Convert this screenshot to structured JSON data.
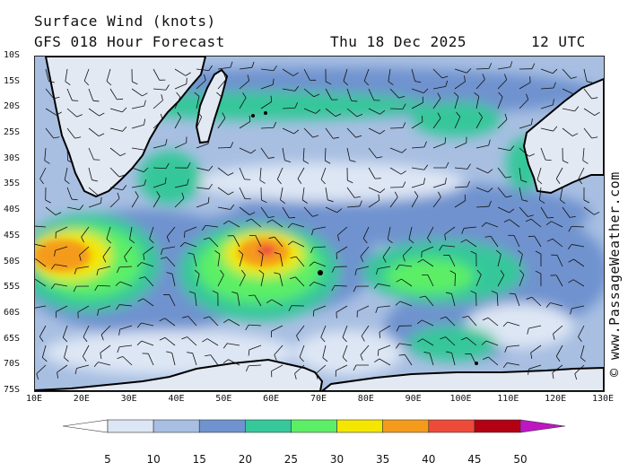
{
  "header": {
    "title": "Surface Wind (knots)",
    "subtitle": "GFS 018 Hour Forecast",
    "date": "Thu 18 Dec 2025",
    "time": "12 UTC"
  },
  "credit": "© www.PassageWeather.com",
  "lat_labels": [
    "10S",
    "15S",
    "20S",
    "25S",
    "30S",
    "35S",
    "40S",
    "45S",
    "50S",
    "55S",
    "60S",
    "65S",
    "70S",
    "75S"
  ],
  "lon_labels": [
    "10E",
    "20E",
    "30E",
    "40E",
    "50E",
    "60E",
    "70E",
    "80E",
    "90E",
    "100E",
    "110E",
    "120E",
    "130E"
  ],
  "legend": {
    "labels": [
      "5",
      "10",
      "15",
      "20",
      "25",
      "30",
      "35",
      "40",
      "45",
      "50"
    ],
    "colors": [
      "#ffffff",
      "#dde6f4",
      "#a8bfe2",
      "#6f93cf",
      "#36c79a",
      "#5cef66",
      "#f4e600",
      "#f59b1c",
      "#ee4a3a",
      "#b30013",
      "#bf16c4"
    ]
  },
  "map_colors": {
    "land": "#e3e9f3",
    "coast": "#000000",
    "barb": "#111111"
  }
}
